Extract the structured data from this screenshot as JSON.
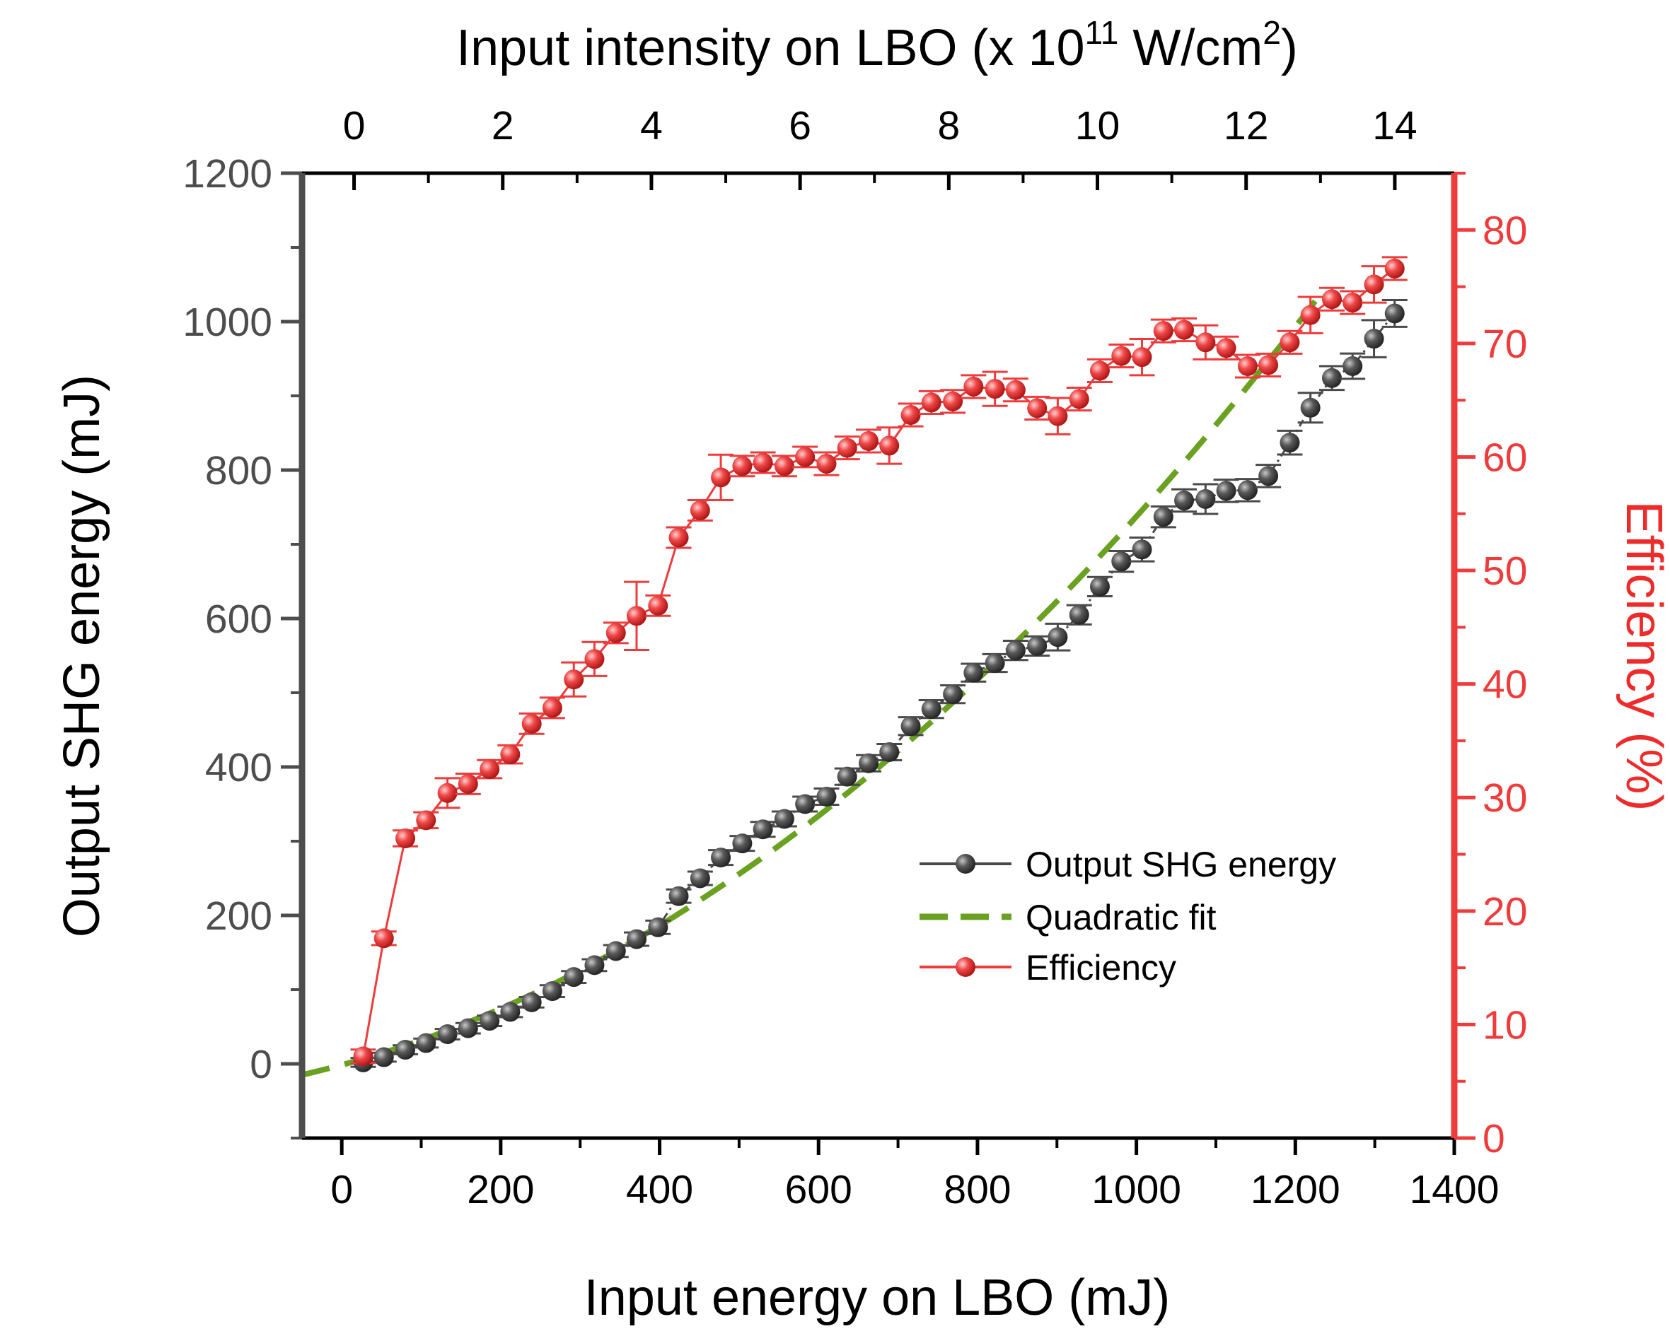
{
  "chart_data": {
    "type": "line",
    "title": "",
    "xlabel": "Input energy on LBO (mJ)",
    "top_xlabel": "Input intensity on LBO (x 10",
    "top_xlabel_exp": "11",
    "top_xlabel_unit": " W/cm",
    "top_xlabel_unit_exp": "2",
    "top_xlabel_close": ")",
    "ylabel_left": "Output SHG energy (mJ)",
    "ylabel_right": "Efficiency (%)",
    "xlim": [
      -50,
      1400
    ],
    "ylim_left": [
      -100,
      1200
    ],
    "ylim_right": [
      0,
      85
    ],
    "top_xlim": [
      -0.7,
      14.8
    ],
    "xticks": [
      0,
      200,
      400,
      600,
      800,
      1000,
      1200,
      1400
    ],
    "xtick_labels": [
      "0",
      "200",
      "400",
      "600",
      "800",
      "1000",
      "1200",
      "1400"
    ],
    "yticks_left": [
      0,
      200,
      400,
      600,
      800,
      1000,
      1200
    ],
    "ytick_labels_left": [
      "0",
      "200",
      "400",
      "600",
      "800",
      "1000",
      "1200"
    ],
    "yticks_right": [
      0,
      10,
      20,
      30,
      40,
      50,
      60,
      70,
      80
    ],
    "ytick_labels_right": [
      "0",
      "10",
      "20",
      "30",
      "40",
      "50",
      "60",
      "70",
      "80"
    ],
    "top_xticks": [
      0,
      2,
      4,
      6,
      8,
      10,
      12,
      14
    ],
    "top_xtick_labels": [
      "0",
      "2",
      "4",
      "6",
      "8",
      "10",
      "12",
      "14"
    ],
    "legend_position": "lower-right",
    "series": [
      {
        "name": "Output SHG energy",
        "axis": "left",
        "color": "#4a4a4a",
        "x": [
          27,
          53,
          80,
          106,
          133,
          159,
          186,
          212,
          239,
          265,
          292,
          318,
          345,
          371,
          398,
          424,
          451,
          477,
          504,
          530,
          557,
          583,
          610,
          636,
          663,
          689,
          716,
          742,
          769,
          795,
          822,
          848,
          875,
          901,
          928,
          954,
          981,
          1007,
          1034,
          1060,
          1087,
          1113,
          1140,
          1166,
          1193,
          1219,
          1246,
          1272,
          1299,
          1325
        ],
        "y": [
          2,
          9,
          19,
          28,
          40,
          48,
          58,
          70,
          83,
          98,
          117,
          133,
          152,
          168,
          184,
          226,
          250,
          278,
          297,
          316,
          330,
          350,
          360,
          387,
          405,
          420,
          455,
          478,
          498,
          527,
          540,
          557,
          563,
          575,
          605,
          643,
          677,
          693,
          737,
          759,
          761,
          772,
          773,
          792,
          837,
          884,
          924,
          940,
          977,
          1011
        ],
        "error": [
          6,
          6,
          6,
          6,
          7,
          7,
          7,
          7,
          7,
          8,
          8,
          8,
          8,
          9,
          9,
          9,
          9,
          10,
          10,
          10,
          10,
          10,
          11,
          11,
          11,
          11,
          12,
          12,
          12,
          12,
          12,
          13,
          13,
          18,
          13,
          13,
          14,
          16,
          14,
          15,
          20,
          15,
          15,
          15,
          16,
          20,
          16,
          17,
          25,
          18
        ]
      },
      {
        "name": "Quadratic fit",
        "axis": "left",
        "color": "#6aa121",
        "style": "dashed",
        "function": "quadratic",
        "a": 0.000449,
        "b": 0.29,
        "c": -1.5,
        "x_range": [
          -50,
          1225
        ]
      },
      {
        "name": "Efficiency",
        "axis": "right",
        "color": "#ee3b3b",
        "x": [
          27,
          53,
          80,
          106,
          133,
          159,
          186,
          212,
          239,
          265,
          292,
          318,
          345,
          371,
          398,
          424,
          451,
          477,
          504,
          530,
          557,
          583,
          610,
          636,
          663,
          689,
          716,
          742,
          769,
          795,
          822,
          848,
          875,
          901,
          928,
          954,
          981,
          1007,
          1034,
          1060,
          1087,
          1113,
          1140,
          1166,
          1193,
          1219,
          1246,
          1272,
          1299,
          1325
        ],
        "y": [
          7.2,
          17.6,
          26.4,
          28.0,
          30.4,
          31.2,
          32.5,
          33.8,
          36.5,
          37.9,
          40.4,
          42.2,
          44.5,
          46.0,
          46.9,
          52.9,
          55.3,
          58.2,
          59.2,
          59.5,
          59.2,
          60.0,
          59.4,
          60.8,
          61.4,
          61.0,
          63.7,
          64.8,
          64.9,
          66.2,
          66.0,
          65.9,
          64.3,
          63.6,
          65.1,
          67.6,
          68.9,
          68.8,
          71.1,
          71.2,
          70.1,
          69.6,
          68.0,
          68.1,
          70.1,
          72.5,
          73.9,
          73.6,
          75.2,
          76.6
        ],
        "error": [
          0.6,
          0.6,
          0.7,
          0.7,
          1.3,
          0.9,
          0.8,
          0.8,
          0.9,
          0.9,
          1.5,
          1.5,
          0.9,
          3.0,
          0.9,
          0.9,
          0.9,
          2.0,
          0.9,
          0.9,
          0.9,
          0.9,
          1.0,
          1.0,
          1.0,
          1.6,
          1.0,
          1.0,
          1.0,
          1.0,
          1.5,
          1.0,
          1.0,
          1.6,
          1.0,
          1.0,
          1.0,
          1.6,
          1.0,
          1.0,
          1.5,
          1.0,
          1.0,
          1.0,
          1.0,
          1.6,
          1.0,
          1.0,
          1.6,
          1.0
        ]
      }
    ]
  }
}
